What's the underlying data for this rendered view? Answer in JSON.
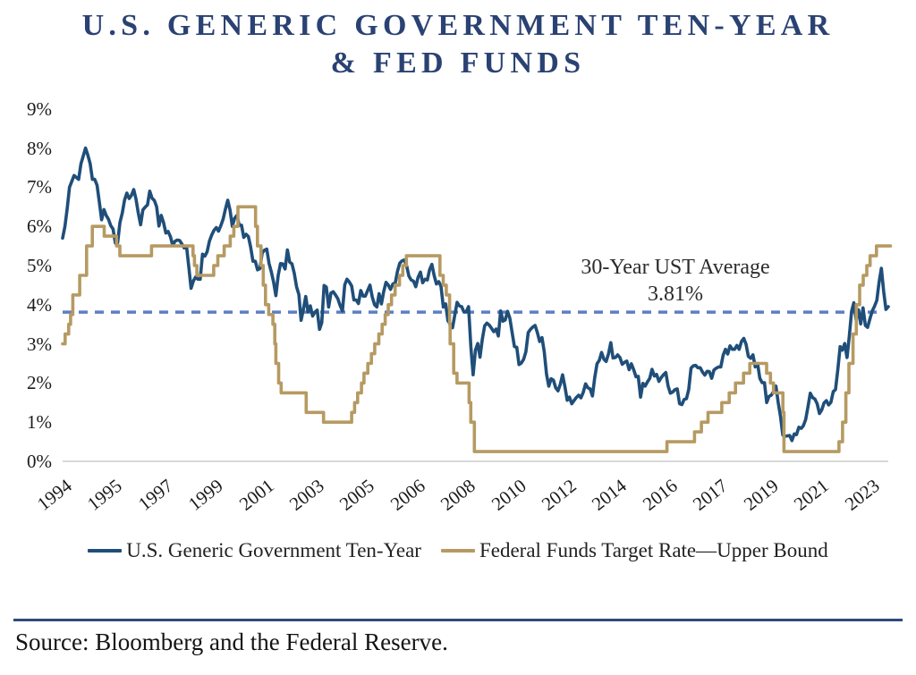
{
  "header": {
    "title_line1": "U.S. GENERIC GOVERNMENT TEN-YEAR",
    "title_line2": "& FED FUNDS"
  },
  "annotation": {
    "line1": "30-Year UST Average",
    "line2": "3.81%"
  },
  "legend": [
    {
      "label": "U.S. Generic Government Ten-Year",
      "color": "#1F4E79"
    },
    {
      "label": "Federal Funds Target Rate—Upper Bound",
      "color": "#B69A62"
    }
  ],
  "footer": {
    "source": "Source: Bloomberg and the Federal Reserve."
  },
  "colors": {
    "ten_year_line": "#1F4E79",
    "fed_funds_line": "#B69A62",
    "average_dash": "#5C7FC2",
    "title_navy": "#2A4273",
    "rule_navy": "#2F4B7C",
    "baseline_gray": "#CCCCCC"
  },
  "chart_data": {
    "type": "line",
    "title": "U.S. Generic Government Ten-Year & Fed Funds",
    "grid": "off",
    "legend_position": "bottom",
    "y_axis": {
      "min": 0,
      "max": 9,
      "tick_labels": [
        "9%",
        "8%",
        "7%",
        "6%",
        "5%",
        "4%",
        "3%",
        "2%",
        "1%",
        "0%"
      ]
    },
    "x_axis": {
      "start": "1994-01",
      "end": "2024-01",
      "frequency": "monthly",
      "tick_labels": [
        "1994",
        "1995",
        "1997",
        "1999",
        "2001",
        "2003",
        "2005",
        "2006",
        "2008",
        "2010",
        "2012",
        "2014",
        "2016",
        "2017",
        "2019",
        "2021",
        "2023"
      ],
      "tick_month_indices": [
        0,
        22,
        44,
        66,
        88,
        110,
        132,
        154,
        176,
        198,
        220,
        242,
        264,
        286,
        308,
        330,
        352
      ]
    },
    "average_line": {
      "label": "30-Year UST Average",
      "value": 3.81,
      "display": "3.81%",
      "style": "dashed",
      "color": "#5C7FC2"
    },
    "series": [
      {
        "name": "U.S. Generic Government Ten-Year",
        "color": "#1F4E79",
        "type": "line",
        "start": "1994-01",
        "frequency": "monthly",
        "values": [
          5.7,
          6.0,
          6.45,
          7.0,
          7.15,
          7.3,
          7.25,
          7.2,
          7.6,
          7.8,
          8.0,
          7.82,
          7.6,
          7.2,
          7.2,
          7.05,
          6.63,
          6.17,
          6.43,
          6.28,
          6.18,
          6.02,
          5.93,
          5.57,
          5.58,
          6.1,
          6.34,
          6.67,
          6.85,
          6.71,
          6.79,
          6.94,
          6.7,
          6.34,
          6.04,
          6.42,
          6.49,
          6.55,
          6.9,
          6.72,
          6.66,
          6.5,
          6.01,
          6.28,
          6.1,
          5.83,
          5.87,
          5.74,
          5.51,
          5.62,
          5.65,
          5.64,
          5.55,
          5.45,
          5.49,
          4.98,
          4.42,
          4.6,
          4.71,
          4.65,
          4.65,
          5.29,
          5.24,
          5.35,
          5.62,
          5.78,
          5.9,
          5.97,
          5.88,
          6.02,
          6.19,
          6.44,
          6.67,
          6.41,
          6.0,
          6.21,
          6.28,
          6.03,
          6.03,
          5.72,
          5.8,
          5.74,
          5.47,
          5.11,
          5.11,
          4.89,
          4.92,
          5.32,
          5.39,
          5.42,
          5.05,
          4.84,
          4.57,
          4.23,
          4.75,
          5.05,
          5.04,
          4.91,
          5.4,
          5.09,
          5.04,
          4.8,
          4.46,
          4.26,
          3.6,
          3.89,
          4.21,
          3.82,
          3.97,
          3.71,
          3.81,
          3.86,
          3.37,
          3.54,
          4.49,
          4.45,
          3.94,
          4.3,
          4.33,
          4.25,
          4.15,
          3.98,
          3.84,
          4.51,
          4.65,
          4.58,
          4.48,
          4.12,
          4.12,
          4.03,
          4.36,
          4.22,
          4.22,
          4.36,
          4.5,
          4.2,
          4.0,
          3.94,
          4.28,
          4.02,
          4.33,
          4.57,
          4.5,
          4.39,
          4.53,
          4.55,
          4.85,
          5.06,
          5.12,
          5.14,
          4.99,
          4.73,
          4.63,
          4.6,
          4.46,
          4.7,
          4.83,
          4.56,
          4.65,
          4.63,
          4.89,
          5.03,
          4.74,
          4.53,
          4.59,
          4.47,
          3.94,
          4.02,
          3.59,
          3.51,
          3.41,
          3.73,
          4.06,
          3.97,
          3.95,
          3.81,
          3.82,
          3.95,
          2.92,
          2.21,
          2.84,
          3.01,
          2.66,
          3.12,
          3.46,
          3.53,
          3.48,
          3.4,
          3.31,
          3.38,
          3.2,
          3.84,
          3.58,
          3.61,
          3.83,
          3.65,
          3.29,
          2.93,
          2.91,
          2.47,
          2.51,
          2.6,
          2.8,
          3.29,
          3.37,
          3.43,
          3.47,
          3.29,
          3.06,
          3.16,
          2.8,
          2.22,
          1.92,
          2.11,
          2.07,
          1.88,
          1.8,
          1.97,
          2.21,
          1.91,
          1.56,
          1.64,
          1.47,
          1.55,
          1.63,
          1.69,
          1.62,
          1.76,
          1.98,
          1.88,
          1.85,
          1.67,
          2.13,
          2.49,
          2.58,
          2.78,
          2.61,
          2.55,
          2.74,
          3.03,
          2.64,
          2.65,
          2.72,
          2.65,
          2.48,
          2.53,
          2.56,
          2.34,
          2.49,
          2.34,
          2.16,
          2.17,
          1.64,
          1.99,
          1.92,
          2.03,
          2.12,
          2.35,
          2.18,
          2.22,
          2.04,
          2.14,
          2.21,
          2.27,
          1.92,
          1.74,
          1.77,
          1.83,
          1.85,
          1.47,
          1.45,
          1.58,
          1.6,
          1.83,
          2.38,
          2.44,
          2.45,
          2.39,
          2.39,
          2.28,
          2.2,
          2.3,
          2.29,
          2.12,
          2.33,
          2.38,
          2.41,
          2.41,
          2.71,
          2.86,
          2.74,
          2.95,
          2.86,
          2.86,
          2.96,
          2.86,
          3.06,
          3.14,
          2.99,
          2.68,
          2.63,
          2.72,
          2.41,
          2.5,
          2.12,
          2.01,
          2.01,
          1.5,
          1.66,
          1.69,
          1.78,
          1.92,
          1.51,
          1.15,
          0.67,
          0.64,
          0.65,
          0.66,
          0.53,
          0.7,
          0.68,
          0.87,
          0.84,
          0.91,
          1.07,
          1.4,
          1.74,
          1.63,
          1.59,
          1.47,
          1.22,
          1.31,
          1.49,
          1.55,
          1.44,
          1.51,
          1.78,
          1.83,
          2.34,
          2.93,
          2.84,
          3.01,
          2.65,
          3.19,
          3.83,
          4.05,
          3.61,
          3.87,
          3.51,
          3.92,
          3.47,
          3.42,
          3.64,
          3.84,
          3.96,
          4.11,
          4.57,
          4.93,
          4.33,
          3.88,
          3.95
        ]
      },
      {
        "name": "Federal Funds Target Rate—Upper Bound",
        "color": "#B69A62",
        "type": "step",
        "end": 2024.08,
        "points": [
          [
            1994.0,
            3.0
          ],
          [
            1994.09,
            3.25
          ],
          [
            1994.22,
            3.5
          ],
          [
            1994.29,
            3.75
          ],
          [
            1994.37,
            4.25
          ],
          [
            1994.62,
            4.75
          ],
          [
            1994.87,
            5.5
          ],
          [
            1995.08,
            6.0
          ],
          [
            1995.51,
            5.75
          ],
          [
            1995.96,
            5.5
          ],
          [
            1996.08,
            5.25
          ],
          [
            1997.23,
            5.5
          ],
          [
            1998.74,
            5.25
          ],
          [
            1998.79,
            5.0
          ],
          [
            1998.88,
            4.75
          ],
          [
            1999.49,
            5.0
          ],
          [
            1999.64,
            5.25
          ],
          [
            1999.87,
            5.5
          ],
          [
            2000.09,
            5.75
          ],
          [
            2000.22,
            6.0
          ],
          [
            2000.37,
            6.5
          ],
          [
            2001.01,
            6.0
          ],
          [
            2001.08,
            5.5
          ],
          [
            2001.21,
            5.0
          ],
          [
            2001.29,
            4.5
          ],
          [
            2001.37,
            4.0
          ],
          [
            2001.49,
            3.75
          ],
          [
            2001.64,
            3.5
          ],
          [
            2001.71,
            3.0
          ],
          [
            2001.75,
            2.5
          ],
          [
            2001.85,
            2.0
          ],
          [
            2001.94,
            1.75
          ],
          [
            2002.85,
            1.25
          ],
          [
            2003.48,
            1.0
          ],
          [
            2004.5,
            1.25
          ],
          [
            2004.61,
            1.5
          ],
          [
            2004.72,
            1.75
          ],
          [
            2004.86,
            2.0
          ],
          [
            2004.95,
            2.25
          ],
          [
            2005.09,
            2.5
          ],
          [
            2005.22,
            2.75
          ],
          [
            2005.34,
            3.0
          ],
          [
            2005.49,
            3.25
          ],
          [
            2005.61,
            3.5
          ],
          [
            2005.72,
            3.75
          ],
          [
            2005.83,
            4.0
          ],
          [
            2005.95,
            4.25
          ],
          [
            2006.08,
            4.5
          ],
          [
            2006.24,
            4.75
          ],
          [
            2006.36,
            5.0
          ],
          [
            2006.49,
            5.25
          ],
          [
            2007.71,
            4.75
          ],
          [
            2007.83,
            4.5
          ],
          [
            2007.94,
            4.25
          ],
          [
            2008.06,
            3.5
          ],
          [
            2008.08,
            3.0
          ],
          [
            2008.21,
            2.25
          ],
          [
            2008.33,
            2.0
          ],
          [
            2008.77,
            1.5
          ],
          [
            2008.83,
            1.0
          ],
          [
            2008.96,
            0.25
          ],
          [
            2015.96,
            0.5
          ],
          [
            2016.96,
            0.75
          ],
          [
            2017.21,
            1.0
          ],
          [
            2017.45,
            1.25
          ],
          [
            2017.95,
            1.5
          ],
          [
            2018.22,
            1.75
          ],
          [
            2018.45,
            2.0
          ],
          [
            2018.74,
            2.25
          ],
          [
            2018.97,
            2.5
          ],
          [
            2019.58,
            2.25
          ],
          [
            2019.72,
            2.0
          ],
          [
            2019.83,
            1.75
          ],
          [
            2020.17,
            1.25
          ],
          [
            2020.21,
            0.25
          ],
          [
            2022.21,
            0.5
          ],
          [
            2022.34,
            1.0
          ],
          [
            2022.46,
            1.75
          ],
          [
            2022.57,
            2.5
          ],
          [
            2022.72,
            3.25
          ],
          [
            2022.84,
            4.0
          ],
          [
            2022.96,
            4.5
          ],
          [
            2023.09,
            4.75
          ],
          [
            2023.22,
            5.0
          ],
          [
            2023.34,
            5.25
          ],
          [
            2023.57,
            5.5
          ]
        ]
      }
    ]
  }
}
